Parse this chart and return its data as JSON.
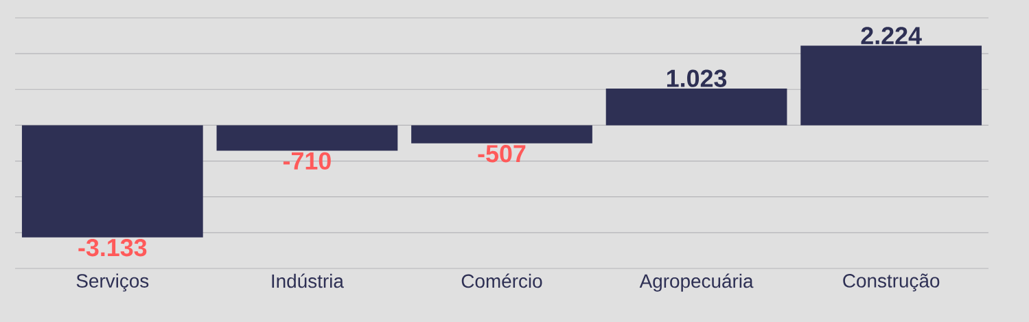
{
  "chart_data": {
    "type": "bar",
    "categories": [
      "Serviços",
      "Indústria",
      "Comércio",
      "Agropecuária",
      "Construção"
    ],
    "values": [
      -3133,
      -710,
      -507,
      1023,
      2224
    ],
    "value_labels": [
      "-3.133",
      "-710",
      "-507",
      "1.023",
      "2.224"
    ],
    "color": "#2e3054",
    "ylim": [
      -4000,
      3000
    ],
    "yticks": [
      {
        "value": -4000,
        "label": null
      },
      {
        "value": -3000,
        "label": null
      },
      {
        "value": -2000,
        "label": null
      },
      {
        "value": -1000,
        "label": null
      },
      {
        "value": 0,
        "label": null
      },
      {
        "value": 1000,
        "label": null
      },
      {
        "value": 2000,
        "label": null
      },
      {
        "value": 3000,
        "label": null
      }
    ],
    "grid": "y",
    "tick_labels": "x"
  }
}
